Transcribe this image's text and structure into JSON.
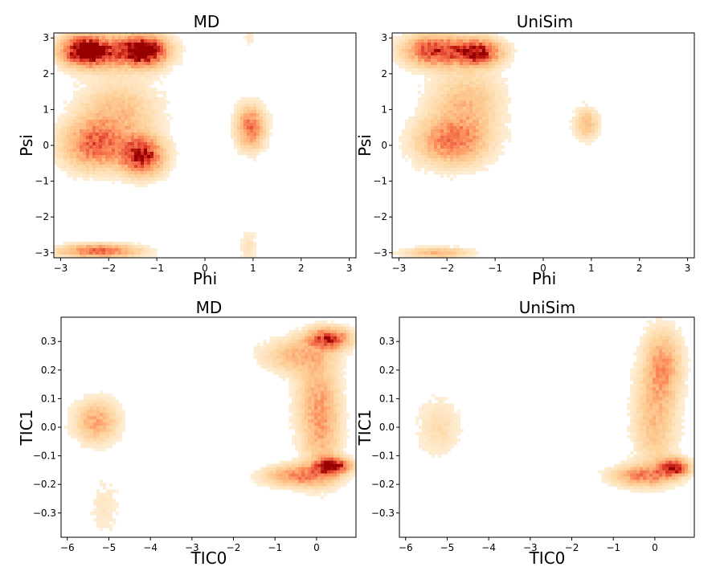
{
  "chart_data": [
    {
      "type": "heatmap",
      "title": "MD",
      "xlabel": "Phi",
      "ylabel": "Psi",
      "xlim": [
        -3.14,
        3.14
      ],
      "ylim": [
        -3.14,
        3.14
      ],
      "xticks": [
        -3,
        -2,
        -1,
        0,
        1,
        2,
        3
      ],
      "xtick_labels": [
        "−3",
        "−2",
        "−1",
        "0",
        "1",
        "2",
        "3"
      ],
      "yticks": [
        -3,
        -2,
        -1,
        0,
        1,
        2,
        3
      ],
      "ytick_labels": [
        "−3",
        "−2",
        "−1",
        "0",
        "1",
        "2",
        "3"
      ],
      "grid": false,
      "colormap": "OrRd",
      "density_regions": [
        {
          "x": -2.5,
          "y": 2.65,
          "sx": 0.32,
          "sy": 0.28,
          "w": 1.0
        },
        {
          "x": -1.25,
          "y": 2.65,
          "sx": 0.32,
          "sy": 0.28,
          "w": 1.0
        },
        {
          "x": -1.9,
          "y": 2.6,
          "sx": 0.6,
          "sy": 0.32,
          "w": 0.55
        },
        {
          "x": -2.3,
          "y": 0.0,
          "sx": 0.45,
          "sy": 0.45,
          "w": 0.65
        },
        {
          "x": -1.3,
          "y": -0.3,
          "sx": 0.3,
          "sy": 0.35,
          "w": 0.95
        },
        {
          "x": -1.8,
          "y": 0.9,
          "sx": 0.55,
          "sy": 0.6,
          "w": 0.35
        },
        {
          "x": -2.2,
          "y": -2.95,
          "sx": 0.55,
          "sy": 0.13,
          "w": 0.7
        },
        {
          "x": 0.95,
          "y": 0.5,
          "sx": 0.2,
          "sy": 0.4,
          "w": 0.65
        },
        {
          "x": 0.9,
          "y": -2.8,
          "sx": 0.12,
          "sy": 0.3,
          "w": 0.15
        },
        {
          "x": 0.95,
          "y": 3.0,
          "sx": 0.1,
          "sy": 0.15,
          "w": 0.1
        }
      ]
    },
    {
      "type": "heatmap",
      "title": "UniSim",
      "xlabel": "Phi",
      "ylabel": "Psi",
      "xlim": [
        -3.14,
        3.14
      ],
      "ylim": [
        -3.14,
        3.14
      ],
      "xticks": [
        -3,
        -2,
        -1,
        0,
        1,
        2,
        3
      ],
      "xtick_labels": [
        "−3",
        "−2",
        "−1",
        "0",
        "1",
        "2",
        "3"
      ],
      "yticks": [
        -3,
        -2,
        -1,
        0,
        1,
        2,
        3
      ],
      "ytick_labels": [
        "−3",
        "−2",
        "−1",
        "0",
        "1",
        "2",
        "3"
      ],
      "grid": false,
      "colormap": "OrRd",
      "density_regions": [
        {
          "x": -1.4,
          "y": 2.6,
          "sx": 0.35,
          "sy": 0.25,
          "w": 1.0
        },
        {
          "x": -2.3,
          "y": 2.65,
          "sx": 0.4,
          "sy": 0.3,
          "w": 0.8
        },
        {
          "x": -1.9,
          "y": 0.1,
          "sx": 0.5,
          "sy": 0.45,
          "w": 0.6
        },
        {
          "x": -1.6,
          "y": 1.2,
          "sx": 0.5,
          "sy": 0.6,
          "w": 0.35
        },
        {
          "x": -2.2,
          "y": -3.0,
          "sx": 0.45,
          "sy": 0.1,
          "w": 0.4
        },
        {
          "x": 0.9,
          "y": 0.6,
          "sx": 0.17,
          "sy": 0.3,
          "w": 0.35
        }
      ]
    },
    {
      "type": "heatmap",
      "title": "MD",
      "xlabel": "TIC0",
      "ylabel": "TIC1",
      "xlim": [
        -6.15,
        0.95
      ],
      "ylim": [
        -0.385,
        0.385
      ],
      "xticks": [
        -6,
        -5,
        -4,
        -3,
        -2,
        -1,
        0
      ],
      "xtick_labels": [
        "−6",
        "−5",
        "−4",
        "−3",
        "−2",
        "−1",
        "0"
      ],
      "yticks": [
        -0.3,
        -0.2,
        -0.1,
        0.0,
        0.1,
        0.2,
        0.3
      ],
      "ytick_labels": [
        "−0.3",
        "−0.2",
        "−0.1",
        "0.0",
        "0.1",
        "0.2",
        "0.3"
      ],
      "grid": false,
      "colormap": "OrRd",
      "density_regions": [
        {
          "x": 0.4,
          "y": -0.135,
          "sx": 0.28,
          "sy": 0.018,
          "w": 1.0
        },
        {
          "x": -0.4,
          "y": -0.17,
          "sx": 0.55,
          "sy": 0.025,
          "w": 0.6
        },
        {
          "x": 0.3,
          "y": 0.31,
          "sx": 0.35,
          "sy": 0.025,
          "w": 0.8
        },
        {
          "x": -0.5,
          "y": 0.25,
          "sx": 0.55,
          "sy": 0.04,
          "w": 0.35
        },
        {
          "x": 0.0,
          "y": 0.1,
          "sx": 0.35,
          "sy": 0.12,
          "w": 0.3
        },
        {
          "x": 0.15,
          "y": -0.02,
          "sx": 0.3,
          "sy": 0.12,
          "w": 0.28
        },
        {
          "x": -5.3,
          "y": 0.02,
          "sx": 0.35,
          "sy": 0.05,
          "w": 0.45
        },
        {
          "x": -5.1,
          "y": -0.28,
          "sx": 0.25,
          "sy": 0.07,
          "w": 0.12
        }
      ]
    },
    {
      "type": "heatmap",
      "title": "UniSim",
      "xlabel": "TIC0",
      "ylabel": "TIC1",
      "xlim": [
        -6.15,
        0.95
      ],
      "ylim": [
        -0.385,
        0.385
      ],
      "xticks": [
        -6,
        -5,
        -4,
        -3,
        -2,
        -1,
        0
      ],
      "xtick_labels": [
        "−6",
        "−5",
        "−4",
        "−3",
        "−2",
        "−1",
        "0"
      ],
      "yticks": [
        -0.3,
        -0.2,
        -0.1,
        0.0,
        0.1,
        0.2,
        0.3
      ],
      "ytick_labels": [
        "−0.3",
        "−0.2",
        "−0.1",
        "0.0",
        "0.1",
        "0.2",
        "0.3"
      ],
      "grid": false,
      "colormap": "OrRd",
      "density_regions": [
        {
          "x": 0.45,
          "y": -0.14,
          "sx": 0.25,
          "sy": 0.02,
          "w": 0.95
        },
        {
          "x": -0.3,
          "y": -0.17,
          "sx": 0.5,
          "sy": 0.025,
          "w": 0.55
        },
        {
          "x": 0.2,
          "y": 0.22,
          "sx": 0.3,
          "sy": 0.08,
          "w": 0.45
        },
        {
          "x": 0.0,
          "y": 0.03,
          "sx": 0.35,
          "sy": 0.12,
          "w": 0.35
        },
        {
          "x": -5.2,
          "y": 0.0,
          "sx": 0.35,
          "sy": 0.07,
          "w": 0.18
        }
      ]
    }
  ]
}
